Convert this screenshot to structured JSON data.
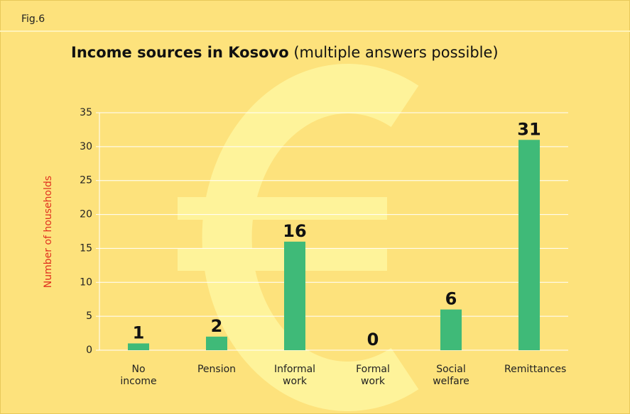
{
  "figure_label": "Fig.6",
  "chart_data": {
    "type": "bar",
    "title": "Income sources in Kosovo",
    "subtitle": "(multiple answers possible)",
    "y_label": "Number of households",
    "categories": [
      "No income",
      "Pension",
      "Informal work",
      "Formal work",
      "Social welfare",
      "Remittances"
    ],
    "values": [
      1,
      2,
      16,
      0,
      6,
      31
    ],
    "color": "#3fba78",
    "ylim": [
      0,
      35
    ],
    "yticks": [
      0,
      5,
      10,
      15,
      20,
      25,
      30,
      35
    ],
    "grid": true
  }
}
